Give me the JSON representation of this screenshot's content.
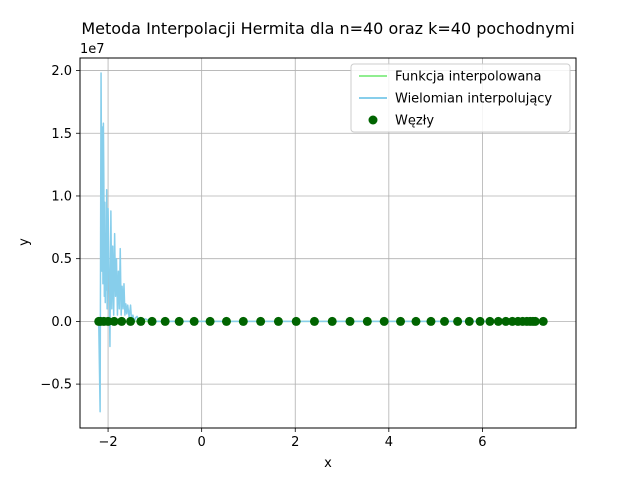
{
  "colors": {
    "function_line": "#90ee90",
    "polynomial_line": "#87ceeb",
    "nodes": "#006400",
    "grid": "#b0b0b0"
  },
  "chart_data": {
    "type": "line",
    "title": "Metoda Interpolacji Hermita dla n=40 oraz k=40 pochodnymi",
    "xlabel": "x",
    "ylabel": "y",
    "y_offset_label": "1e7",
    "xlim": [
      -2.6,
      8.0
    ],
    "ylim": [
      -0.85,
      2.1
    ],
    "xticks": [
      -2,
      0,
      2,
      4,
      6
    ],
    "xtick_labels": [
      "−2",
      "0",
      "2",
      "4",
      "6"
    ],
    "yticks": [
      -0.5,
      0.0,
      0.5,
      1.0,
      1.5,
      2.0
    ],
    "ytick_labels": [
      "−0.5",
      "0.0",
      "0.5",
      "1.0",
      "1.5",
      "2.0"
    ],
    "grid": true,
    "legend_position": "top-right",
    "series": [
      {
        "name": "Funkcja interpolowana",
        "kind": "line",
        "color": "#90ee90",
        "x": [
          -2.2,
          7.3
        ],
        "y": [
          0.0,
          0.0
        ]
      },
      {
        "name": "Wielomian interpolujący",
        "kind": "line",
        "color": "#87ceeb",
        "x": [
          -2.2,
          -2.17,
          -2.15,
          -2.13,
          -2.12,
          -2.11,
          -2.1,
          -2.09,
          -2.08,
          -2.07,
          -2.06,
          -2.05,
          -2.04,
          -2.03,
          -2.02,
          -2.0,
          -1.98,
          -1.96,
          -1.94,
          -1.92,
          -1.9,
          -1.88,
          -1.86,
          -1.84,
          -1.82,
          -1.8,
          -1.78,
          -1.76,
          -1.74,
          -1.72,
          -1.7,
          -1.68,
          -1.66,
          -1.64,
          -1.62,
          -1.6,
          -1.58,
          -1.55,
          -1.52,
          -1.5,
          -1.47,
          -1.44,
          -1.41,
          -1.38,
          -1.35,
          -1.3,
          -1.25,
          -1.2,
          -1.1,
          -1.0,
          0.0,
          2.0,
          4.0,
          6.0,
          7.3
        ],
        "y": [
          0.0,
          -0.72,
          1.98,
          0.4,
          1.55,
          0.3,
          1.58,
          1.1,
          0.2,
          0.95,
          0.15,
          0.7,
          0.25,
          1.05,
          0.1,
          0.9,
          0.4,
          -0.2,
          0.88,
          0.1,
          0.6,
          0.05,
          0.7,
          0.2,
          0.5,
          0.05,
          0.4,
          0.1,
          0.58,
          0.05,
          0.28,
          0.1,
          0.3,
          0.05,
          0.14,
          0.06,
          0.13,
          0.03,
          0.13,
          0.02,
          0.05,
          0.0,
          0.03,
          0.04,
          0.0,
          0.03,
          0.01,
          0.02,
          0.0,
          0.0,
          0.0,
          0.0,
          0.0,
          0.0,
          0.0
        ]
      },
      {
        "name": "Węzły",
        "kind": "scatter",
        "color": "#006400",
        "x": [
          -2.2,
          -2.16,
          -2.09,
          -2.0,
          -1.87,
          -1.71,
          -1.52,
          -1.3,
          -1.06,
          -0.78,
          -0.48,
          -0.16,
          0.18,
          0.53,
          0.89,
          1.26,
          1.64,
          2.02,
          2.41,
          2.79,
          3.17,
          3.54,
          3.9,
          4.25,
          4.58,
          4.9,
          5.19,
          5.47,
          5.72,
          5.95,
          6.16,
          6.34,
          6.5,
          6.64,
          6.76,
          6.86,
          6.95,
          7.02,
          7.08,
          7.13,
          7.3
        ],
        "y": [
          0.0,
          0.0,
          0.0,
          0.0,
          0.0,
          0.0,
          0.0,
          0.0,
          0.0,
          0.0,
          0.0,
          0.0,
          0.0,
          0.0,
          0.0,
          0.0,
          0.0,
          0.0,
          0.0,
          0.0,
          0.0,
          0.0,
          0.0,
          0.0,
          0.0,
          0.0,
          0.0,
          0.0,
          0.0,
          0.0,
          0.0,
          0.0,
          0.0,
          0.0,
          0.0,
          0.0,
          0.0,
          0.0,
          0.0,
          0.0,
          0.0
        ]
      }
    ]
  }
}
